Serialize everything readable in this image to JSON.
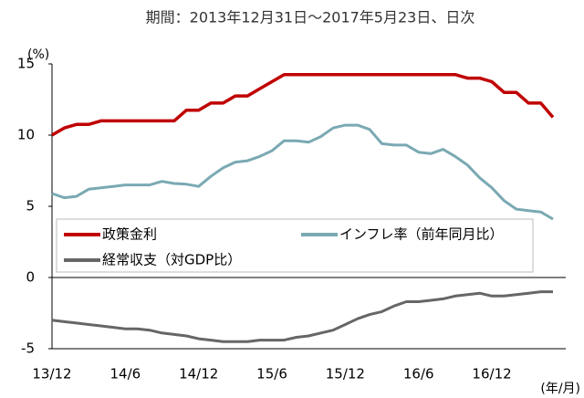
{
  "chart_data": {
    "type": "line",
    "title": "期間：2013年12月31日～2017年5月23日、日次",
    "y_unit": "(%)",
    "x_unit": "(年/月)",
    "categories": [
      "13/12",
      null,
      null,
      null,
      null,
      null,
      "14/6",
      null,
      null,
      null,
      null,
      null,
      "14/12",
      null,
      null,
      null,
      null,
      null,
      "15/6",
      null,
      null,
      null,
      null,
      null,
      "15/12",
      null,
      null,
      null,
      null,
      null,
      "16/6",
      null,
      null,
      null,
      null,
      null,
      "16/12",
      null,
      null,
      null,
      null,
      null
    ],
    "ylim": [
      -5,
      15
    ],
    "yticks": [
      -5,
      0,
      5,
      10,
      15
    ],
    "series": [
      {
        "name": "政策金利",
        "color": "#c00000",
        "values": [
          10,
          10.5,
          10.75,
          10.75,
          11,
          11,
          11,
          11,
          11,
          11,
          11,
          11.75,
          11.75,
          12.25,
          12.25,
          12.75,
          12.75,
          13.25,
          13.75,
          14.25,
          14.25,
          14.25,
          14.25,
          14.25,
          14.25,
          14.25,
          14.25,
          14.25,
          14.25,
          14.25,
          14.25,
          14.25,
          14.25,
          14.25,
          14,
          14,
          13.75,
          13,
          13,
          12.25,
          12.25,
          11.25
        ]
      },
      {
        "name": "インフレ率（前年同月比）",
        "color": "#7aa9b3",
        "values": [
          5.9,
          5.6,
          5.7,
          6.2,
          6.3,
          6.4,
          6.5,
          6.5,
          6.5,
          6.75,
          6.6,
          6.55,
          6.4,
          7.1,
          7.7,
          8.1,
          8.2,
          8.5,
          8.9,
          9.6,
          9.6,
          9.5,
          9.9,
          10.5,
          10.7,
          10.7,
          10.4,
          9.4,
          9.3,
          9.3,
          8.8,
          8.7,
          9.0,
          8.5,
          7.9,
          7.0,
          6.3,
          5.4,
          4.8,
          4.7,
          4.6,
          4.1
        ]
      },
      {
        "name": "経常収支（対GDP比）",
        "color": "#666666",
        "values": [
          -3.0,
          -3.1,
          -3.2,
          -3.3,
          -3.4,
          -3.5,
          -3.6,
          -3.6,
          -3.7,
          -3.9,
          -4.0,
          -4.1,
          -4.3,
          -4.4,
          -4.5,
          -4.5,
          -4.5,
          -4.4,
          -4.4,
          -4.4,
          -4.2,
          -4.1,
          -3.9,
          -3.7,
          -3.3,
          -2.9,
          -2.6,
          -2.4,
          -2.0,
          -1.7,
          -1.7,
          -1.6,
          -1.5,
          -1.3,
          -1.2,
          -1.1,
          -1.3,
          -1.3,
          -1.2,
          -1.1,
          -1.0,
          -1.0
        ]
      }
    ]
  }
}
